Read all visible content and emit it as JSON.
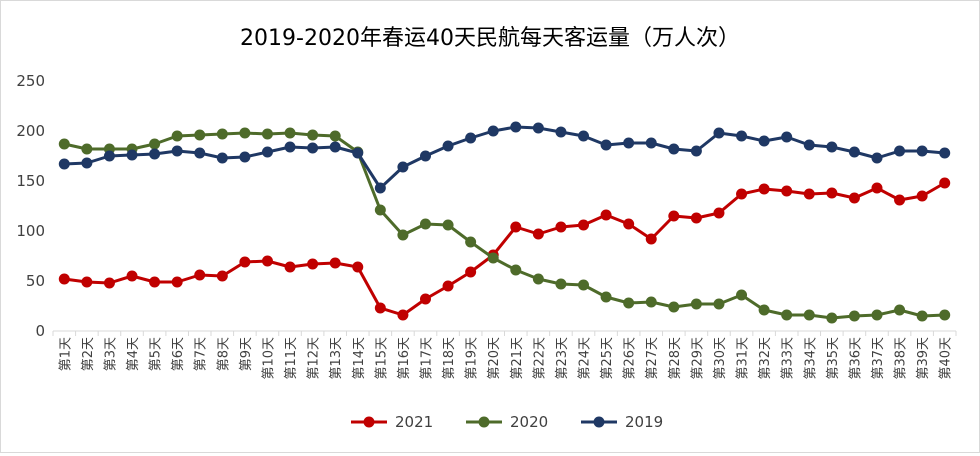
{
  "chart_data": {
    "type": "line",
    "title": "2019-2020年春运40天民航每天客运量（万人次）",
    "xlabel": "",
    "ylabel": "",
    "ylim": [
      0,
      250
    ],
    "yticks": [
      0,
      50,
      100,
      150,
      200,
      250
    ],
    "grid": false,
    "legend_position": "bottom",
    "categories": [
      "第1天",
      "第2天",
      "第3天",
      "第4天",
      "第5天",
      "第6天",
      "第7天",
      "第8天",
      "第9天",
      "第10天",
      "第11天",
      "第12天",
      "第13天",
      "第14天",
      "第15天",
      "第16天",
      "第17天",
      "第18天",
      "第19天",
      "第20天",
      "第21天",
      "第22天",
      "第23天",
      "第24天",
      "第25天",
      "第26天",
      "第27天",
      "第28天",
      "第29天",
      "第30天",
      "第31天",
      "第32天",
      "第33天",
      "第34天",
      "第35天",
      "第36天",
      "第37天",
      "第38天",
      "第39天",
      "第40天"
    ],
    "series": [
      {
        "name": "2021",
        "color": "#c00000",
        "values": [
          52,
          49,
          48,
          55,
          49,
          49,
          56,
          55,
          69,
          70,
          64,
          67,
          68,
          64,
          23,
          16,
          32,
          45,
          59,
          76,
          104,
          97,
          104,
          106,
          116,
          107,
          92,
          115,
          113,
          118,
          137,
          142,
          140,
          137,
          138,
          133,
          143,
          131,
          135,
          148
        ]
      },
      {
        "name": "2020",
        "color": "#4e6b2a",
        "values": [
          187,
          182,
          182,
          182,
          187,
          195,
          196,
          197,
          198,
          197,
          198,
          196,
          195,
          179,
          121,
          96,
          107,
          106,
          89,
          73,
          61,
          52,
          47,
          46,
          34,
          28,
          29,
          24,
          27,
          27,
          36,
          21,
          16,
          16,
          13,
          15,
          16,
          21,
          15,
          16
        ]
      },
      {
        "name": "2019",
        "color": "#1f3864",
        "values": [
          167,
          168,
          175,
          176,
          177,
          180,
          178,
          173,
          174,
          179,
          184,
          183,
          184,
          178,
          143,
          164,
          175,
          185,
          193,
          200,
          204,
          203,
          199,
          195,
          186,
          188,
          188,
          182,
          180,
          198,
          195,
          190,
          194,
          186,
          184,
          179,
          173,
          180,
          180,
          178
        ]
      }
    ]
  }
}
